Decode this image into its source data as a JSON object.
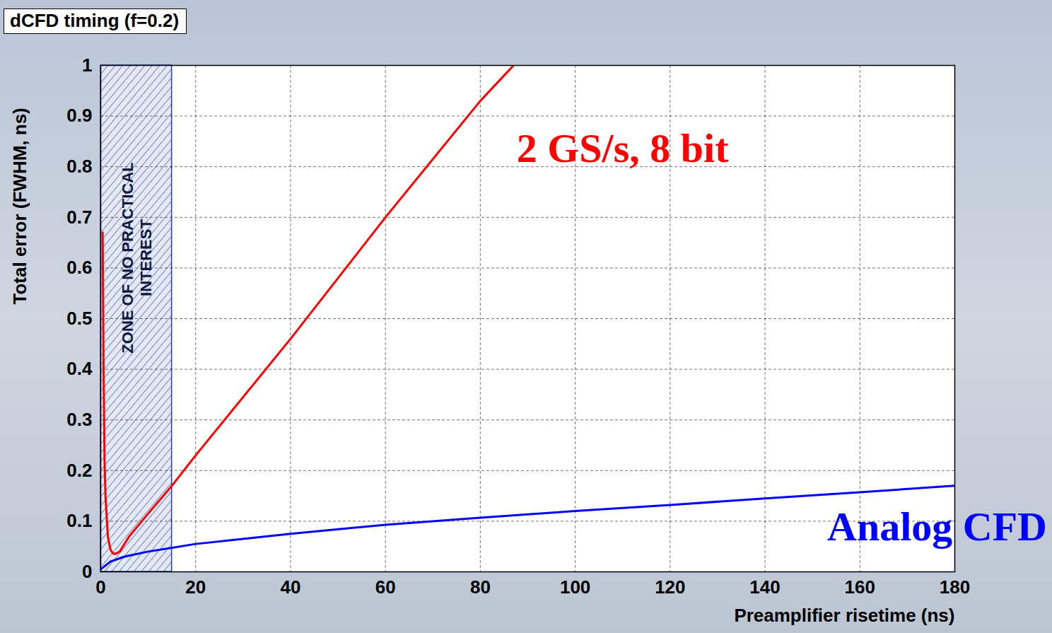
{
  "chart_data": {
    "type": "line",
    "title": "dCFD timing (f=0.2)",
    "x_label": "Preamplifier risetime (ns)",
    "y_label": "Total error (FWHM, ns)",
    "xlim": [
      0,
      180
    ],
    "xticks": [
      0,
      20,
      40,
      60,
      80,
      100,
      120,
      140,
      160,
      180
    ],
    "ylim": [
      0,
      1
    ],
    "yticks": [
      0,
      0.1,
      0.2,
      0.3,
      0.4,
      0.5,
      0.6,
      0.7,
      0.8,
      0.9,
      1
    ],
    "grid": true,
    "series": [
      {
        "name": "2 GS/s, 8 bit",
        "color": "#ff0000",
        "x": [
          0.4,
          0.6,
          0.8,
          1,
          1.5,
          2,
          2.5,
          3,
          4,
          6,
          10,
          15,
          20,
          40,
          60,
          80,
          87
        ],
        "values": [
          0.67,
          0.4,
          0.22,
          0.15,
          0.07,
          0.045,
          0.037,
          0.035,
          0.04,
          0.07,
          0.115,
          0.17,
          0.23,
          0.46,
          0.7,
          0.93,
          1.0
        ]
      },
      {
        "name": "Analog CFD",
        "color": "#0000ff",
        "x": [
          0,
          2,
          5,
          10,
          20,
          40,
          60,
          80,
          100,
          120,
          140,
          160,
          180
        ],
        "values": [
          0.005,
          0.02,
          0.03,
          0.04,
          0.055,
          0.075,
          0.093,
          0.107,
          0.12,
          0.132,
          0.145,
          0.157,
          0.17
        ]
      }
    ],
    "annotations": [
      {
        "text": "ZONE OF NO PRACTICAL INTEREST",
        "x_range": [
          0,
          15
        ]
      }
    ]
  }
}
